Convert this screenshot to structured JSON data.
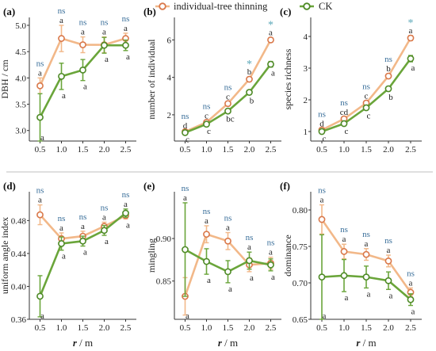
{
  "legend": {
    "items": [
      {
        "label": "individual-tree thinning",
        "color": "#f2b889",
        "marker": "#d9784a"
      },
      {
        "label": "CK",
        "color": "#6aa53a",
        "marker": "#4e8a26"
      }
    ]
  },
  "shared_x": {
    "values": [
      "0.5",
      "1.0",
      "1.5",
      "2.0",
      "2.5"
    ],
    "xlabel_r": "r",
    "xlabel_unit": " / m"
  },
  "colors": {
    "thin": "#f2b889",
    "thin_marker": "#d9784a",
    "ck": "#6aa53a",
    "ck_marker": "#4e8a26",
    "ns": "#3a6f9a",
    "star": "#5aa7b8"
  },
  "chart_data": [
    {
      "panel": "(a)",
      "type": "line",
      "ylabel": "DBH / cm",
      "ylim": [
        2.8,
        5.15
      ],
      "yticks": [
        "3.0",
        "3.5",
        "4.0",
        "4.5",
        "5.0"
      ],
      "ytick_vals": [
        3.0,
        3.5,
        4.0,
        4.5,
        5.0
      ],
      "x": [
        "0.5",
        "1.0",
        "1.5",
        "2.0",
        "2.5"
      ],
      "series": [
        {
          "name": "individual-tree thinning",
          "values": [
            3.85,
            4.75,
            4.63,
            4.63,
            4.75
          ],
          "err": [
            0.15,
            0.25,
            0.15,
            0.15,
            0.1
          ],
          "labels": [
            "a",
            "a",
            "a",
            "a",
            "a"
          ]
        },
        {
          "name": "CK",
          "values": [
            3.25,
            4.03,
            4.15,
            4.62,
            4.62
          ],
          "err": [
            0.45,
            0.25,
            0.2,
            0.15,
            0.1
          ],
          "labels": [
            "a",
            "a",
            "a",
            "a",
            "a"
          ]
        }
      ],
      "sig": [
        "ns",
        "ns",
        "ns",
        "ns",
        "ns"
      ]
    },
    {
      "panel": "(b)",
      "type": "line",
      "ylabel": "number of individual",
      "ylim": [
        0.6,
        7.2
      ],
      "yticks": [
        "2",
        "4",
        "6"
      ],
      "ytick_vals": [
        2,
        4,
        6
      ],
      "x": [
        "0.5",
        "1.0",
        "1.5",
        "2.0",
        "2.5"
      ],
      "series": [
        {
          "name": "individual-tree thinning",
          "values": [
            1.1,
            1.6,
            2.6,
            3.9,
            6.0
          ],
          "err": [
            0.05,
            0.08,
            0.1,
            0.12,
            0.12
          ],
          "labels": [
            "d",
            "c",
            "c",
            "b",
            "a"
          ]
        },
        {
          "name": "CK",
          "values": [
            1.05,
            1.5,
            2.2,
            3.2,
            4.7
          ],
          "err": [
            0.05,
            0.06,
            0.1,
            0.12,
            0.15
          ],
          "labels": [
            "c",
            "c",
            "bc",
            "b",
            "a"
          ]
        }
      ],
      "sig": [
        "ns",
        "ns",
        "ns",
        "*",
        "*"
      ]
    },
    {
      "panel": "(c)",
      "type": "line",
      "ylabel": "species richness",
      "ylim": [
        0.7,
        4.6
      ],
      "yticks": [
        "1",
        "2",
        "3",
        "4"
      ],
      "ytick_vals": [
        1,
        2,
        3,
        4
      ],
      "x": [
        "0.5",
        "1.0",
        "1.5",
        "2.0",
        "2.5"
      ],
      "series": [
        {
          "name": "individual-tree thinning",
          "values": [
            1.05,
            1.4,
            1.9,
            2.75,
            3.95
          ],
          "err": [
            0.04,
            0.05,
            0.06,
            0.07,
            0.08
          ],
          "labels": [
            "d",
            "cd",
            "c",
            "b",
            "a"
          ]
        },
        {
          "name": "CK",
          "values": [
            1.0,
            1.25,
            1.75,
            2.35,
            3.3
          ],
          "err": [
            0.04,
            0.05,
            0.06,
            0.07,
            0.1
          ],
          "labels": [
            "c",
            "c",
            "c",
            "b",
            "a"
          ]
        }
      ],
      "sig": [
        "ns",
        "ns",
        "ns",
        "ns",
        "*"
      ]
    },
    {
      "panel": "(d)",
      "type": "line",
      "ylabel": "uniform angle index",
      "ylim": [
        0.36,
        0.515
      ],
      "yticks": [
        "0.36",
        "0.40",
        "0.44",
        "0.48"
      ],
      "ytick_vals": [
        0.36,
        0.4,
        0.44,
        0.48
      ],
      "x": [
        "0.5",
        "1.0",
        "1.5",
        "2.0",
        "2.5"
      ],
      "series": [
        {
          "name": "individual-tree thinning",
          "values": [
            0.487,
            0.458,
            0.461,
            0.473,
            0.486
          ],
          "err": [
            0.012,
            0.007,
            0.006,
            0.005,
            0.004
          ],
          "labels": [
            "a",
            "a",
            "a",
            "a",
            "a"
          ]
        },
        {
          "name": "CK",
          "values": [
            0.388,
            0.452,
            0.455,
            0.468,
            0.489
          ],
          "err": [
            0.025,
            0.008,
            0.006,
            0.006,
            0.005
          ],
          "labels": [
            "a",
            "a",
            "a",
            "a",
            "a"
          ]
        }
      ],
      "sig": [
        "ns",
        "ns",
        "ns",
        "ns",
        "ns"
      ]
    },
    {
      "panel": "(e)",
      "type": "line",
      "ylabel": "mingling",
      "ylim": [
        0.805,
        0.955
      ],
      "yticks": [
        "0.85",
        "0.90"
      ],
      "ytick_vals": [
        0.85,
        0.9
      ],
      "x": [
        "0.5",
        "1.0",
        "1.5",
        "2.0",
        "2.5"
      ],
      "series": [
        {
          "name": "individual-tree thinning",
          "values": [
            0.832,
            0.905,
            0.897,
            0.869,
            0.871
          ],
          "err": [
            0.022,
            0.01,
            0.01,
            0.008,
            0.007
          ],
          "labels": [
            "a",
            "a",
            "a",
            "a",
            "a"
          ]
        },
        {
          "name": "CK",
          "values": [
            0.887,
            0.873,
            0.861,
            0.874,
            0.869
          ],
          "err": [
            0.055,
            0.015,
            0.013,
            0.01,
            0.007
          ],
          "labels": [
            "a",
            "a",
            "a",
            "a",
            "a"
          ]
        }
      ],
      "sig": [
        "ns",
        "ns",
        "ns",
        "ns",
        "ns"
      ]
    },
    {
      "panel": "(f)",
      "type": "line",
      "ylabel": "dominance",
      "ylim": [
        0.65,
        0.825
      ],
      "yticks": [
        "0.65",
        "0.70",
        "0.75",
        "0.80"
      ],
      "ytick_vals": [
        0.65,
        0.7,
        0.75,
        0.8
      ],
      "x": [
        "0.5",
        "1.0",
        "1.5",
        "2.0",
        "2.5"
      ],
      "series": [
        {
          "name": "individual-tree thinning",
          "values": [
            0.787,
            0.743,
            0.739,
            0.73,
            0.687
          ],
          "err": [
            0.02,
            0.01,
            0.008,
            0.008,
            0.006
          ],
          "labels": [
            "a",
            "a",
            "a",
            "a",
            "a"
          ]
        },
        {
          "name": "CK",
          "values": [
            0.708,
            0.71,
            0.708,
            0.703,
            0.677
          ],
          "err": [
            0.058,
            0.022,
            0.015,
            0.012,
            0.008
          ],
          "labels": [
            "a",
            "a",
            "a",
            "a",
            "a"
          ]
        }
      ],
      "sig": [
        "ns",
        "ns",
        "ns",
        "ns",
        "ns"
      ]
    }
  ]
}
